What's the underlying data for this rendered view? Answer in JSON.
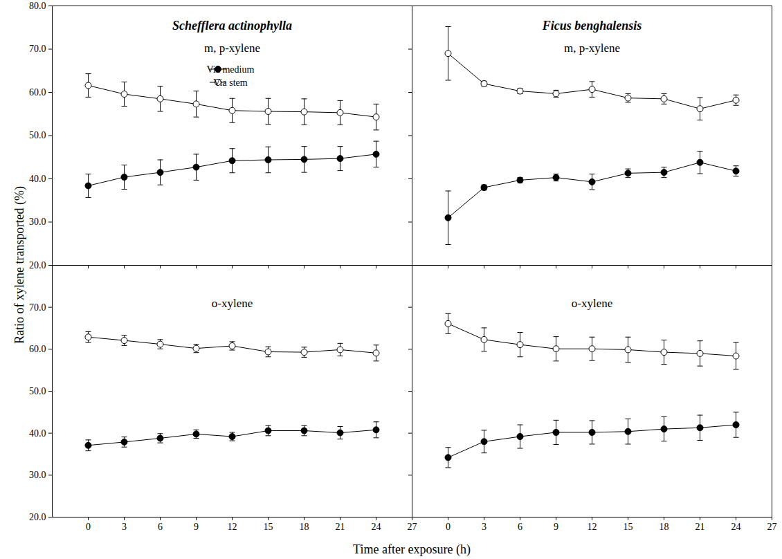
{
  "xlabel": "Time after exposure (h)",
  "ylabel": "Ratio of xylene transported (%)",
  "chart_data": [
    {
      "type": "line",
      "title": "Schefflera actinophylla",
      "subtitle": "m, p-xylene",
      "x": [
        0,
        3,
        6,
        9,
        12,
        15,
        18,
        21,
        24
      ],
      "series": [
        {
          "name": "Via medium",
          "color": "#000000",
          "marker": "filled circle",
          "values": [
            38.4,
            40.4,
            41.5,
            42.7,
            44.2,
            44.4,
            44.5,
            44.7,
            45.7
          ],
          "errors": [
            2.7,
            2.8,
            2.9,
            3.0,
            2.8,
            3.0,
            3.0,
            2.8,
            3.0
          ]
        },
        {
          "name": "Via stem",
          "color": "#000000",
          "marker": "open circle",
          "values": [
            61.6,
            59.6,
            58.5,
            57.3,
            55.8,
            55.6,
            55.5,
            55.3,
            54.3
          ],
          "errors": [
            2.7,
            2.8,
            2.9,
            3.0,
            2.8,
            3.0,
            3.0,
            2.8,
            3.0
          ]
        }
      ],
      "xlim": [
        -3,
        27
      ],
      "xticks": [
        0,
        3,
        6,
        9,
        12,
        15,
        18,
        21,
        24,
        27
      ],
      "ylim": [
        20,
        80
      ],
      "yticks": [
        {
          "value": 20,
          "label": "20.0"
        },
        {
          "value": 30,
          "label": "30.0"
        },
        {
          "value": 40,
          "label": "40.0"
        },
        {
          "value": 50,
          "label": "50.0"
        },
        {
          "value": 60,
          "label": "60.0"
        },
        {
          "value": 70,
          "label": "70.0"
        },
        {
          "value": 80,
          "label": "80.0"
        }
      ],
      "tick_labels": "y",
      "legend": "top"
    },
    {
      "type": "line",
      "title": "Ficus benghalensis",
      "subtitle": "m, p-xylene",
      "x": [
        0,
        3,
        6,
        9,
        12,
        15,
        18,
        21,
        24
      ],
      "series": [
        {
          "name": "Via medium",
          "color": "#000000",
          "marker": "filled circle",
          "values": [
            31.0,
            38.0,
            39.7,
            40.3,
            39.3,
            41.3,
            41.5,
            43.8,
            41.8
          ],
          "errors": [
            6.2,
            0.6,
            0.6,
            0.8,
            1.8,
            1.0,
            1.2,
            2.6,
            1.2
          ]
        },
        {
          "name": "Via stem",
          "color": "#000000",
          "marker": "open circle",
          "values": [
            69.0,
            62.0,
            60.3,
            59.7,
            60.7,
            58.7,
            58.5,
            56.2,
            58.2
          ],
          "errors": [
            6.2,
            0.6,
            0.6,
            0.8,
            1.8,
            1.0,
            1.2,
            2.6,
            1.2
          ]
        }
      ],
      "xlim": [
        -3,
        27
      ],
      "xticks": [
        0,
        3,
        6,
        9,
        12,
        15,
        18,
        21,
        24,
        27
      ],
      "ylim": [
        20,
        80
      ],
      "yticks": [
        {
          "value": 20,
          "label": "20.0"
        },
        {
          "value": 30,
          "label": "30.0"
        },
        {
          "value": 40,
          "label": "40.0"
        },
        {
          "value": 50,
          "label": "50.0"
        },
        {
          "value": 60,
          "label": "60.0"
        },
        {
          "value": 70,
          "label": "70.0"
        },
        {
          "value": 80,
          "label": "80.0"
        }
      ],
      "tick_labels": false
    },
    {
      "type": "line",
      "subtitle": "o-xylene",
      "x": [
        0,
        3,
        6,
        9,
        12,
        15,
        18,
        21,
        24
      ],
      "series": [
        {
          "name": "Via medium",
          "color": "#000000",
          "marker": "filled circle",
          "values": [
            37.1,
            37.9,
            38.8,
            39.8,
            39.2,
            40.6,
            40.6,
            40.1,
            40.8
          ],
          "errors": [
            1.3,
            1.2,
            1.1,
            1.0,
            1.0,
            1.2,
            1.2,
            1.5,
            1.9
          ]
        },
        {
          "name": "Via stem",
          "color": "#000000",
          "marker": "open circle",
          "values": [
            62.9,
            62.1,
            61.2,
            60.2,
            60.8,
            59.4,
            59.3,
            59.9,
            59.1
          ],
          "errors": [
            1.3,
            1.2,
            1.1,
            1.0,
            1.0,
            1.2,
            1.2,
            1.5,
            1.9
          ]
        }
      ],
      "xlim": [
        -3,
        27
      ],
      "xticks": [
        0,
        3,
        6,
        9,
        12,
        15,
        18,
        21,
        24,
        27
      ],
      "ylim": [
        20,
        80
      ],
      "yticks": [
        {
          "value": 20,
          "label": "20.0"
        },
        {
          "value": 30,
          "label": "30.0"
        },
        {
          "value": 40,
          "label": "40.0"
        },
        {
          "value": 50,
          "label": "50.0"
        },
        {
          "value": 60,
          "label": "60.0"
        },
        {
          "value": 70,
          "label": "70.0"
        }
      ],
      "tick_labels": true
    },
    {
      "type": "line",
      "subtitle": "o-xylene",
      "x": [
        0,
        3,
        6,
        9,
        12,
        15,
        18,
        21,
        24
      ],
      "series": [
        {
          "name": "Via medium",
          "color": "#000000",
          "marker": "filled circle",
          "values": [
            34.2,
            38.0,
            39.2,
            40.2,
            40.2,
            40.4,
            41.0,
            41.3,
            42.0
          ],
          "errors": [
            2.4,
            2.7,
            2.8,
            2.9,
            2.8,
            3.0,
            2.9,
            3.0,
            3.0
          ]
        },
        {
          "name": "Via stem",
          "color": "#000000",
          "marker": "open circle",
          "values": [
            66.1,
            62.3,
            61.1,
            60.1,
            60.1,
            59.9,
            59.3,
            59.0,
            58.4
          ],
          "errors": [
            2.4,
            2.8,
            2.9,
            2.9,
            2.8,
            3.0,
            2.9,
            3.0,
            3.2
          ]
        }
      ],
      "xlim": [
        -3,
        27
      ],
      "xticks": [
        0,
        3,
        6,
        9,
        12,
        15,
        18,
        21,
        24,
        27
      ],
      "ylim": [
        20,
        80
      ],
      "yticks": [
        {
          "value": 20,
          "label": "20.0"
        },
        {
          "value": 30,
          "label": "30.0"
        },
        {
          "value": 40,
          "label": "40.0"
        },
        {
          "value": 50,
          "label": "50.0"
        },
        {
          "value": 60,
          "label": "60.0"
        },
        {
          "value": 70,
          "label": "70.0"
        }
      ],
      "tick_labels": "x"
    }
  ]
}
